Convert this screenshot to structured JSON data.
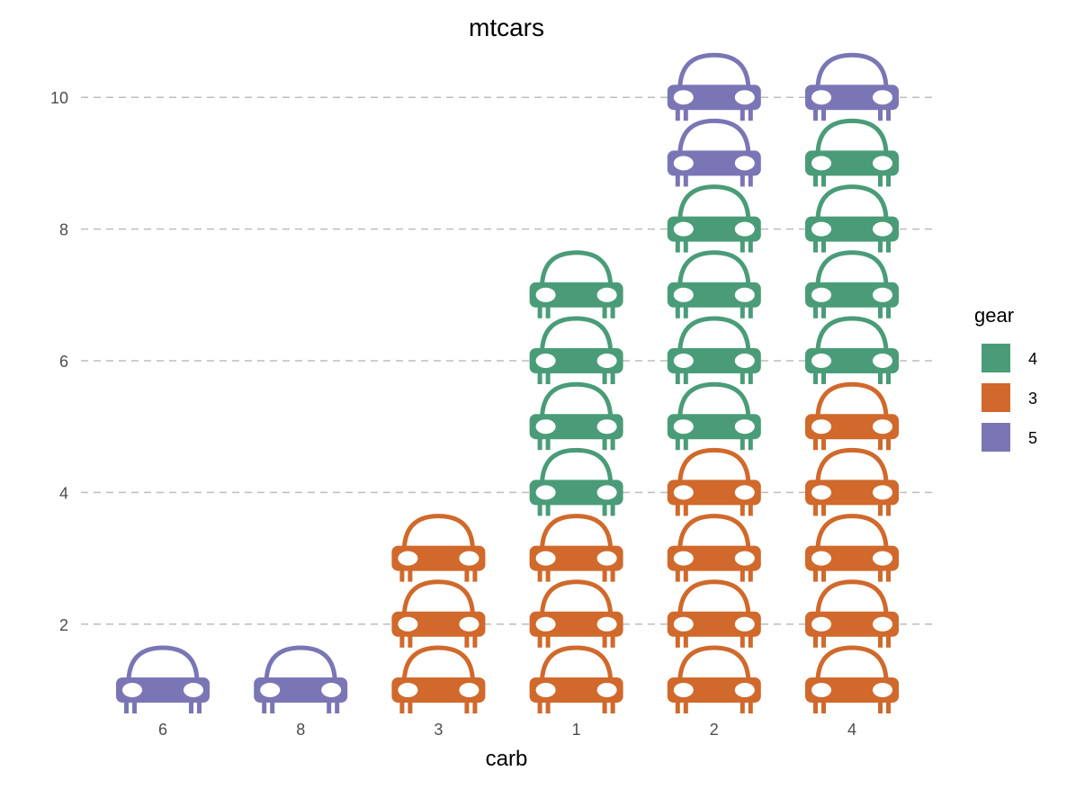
{
  "chart_data": {
    "type": "pictogram",
    "title": "mtcars",
    "xlabel": "carb",
    "ylabel": "",
    "categories": [
      "6",
      "8",
      "3",
      "1",
      "2",
      "4"
    ],
    "y_ticks": [
      "2",
      "4",
      "6",
      "8",
      "10"
    ],
    "ylim": [
      0.6,
      10.6
    ],
    "grid": "horizontal dashed",
    "icon": "car-icon",
    "legend": {
      "title": "gear",
      "position": "right",
      "entries": [
        {
          "label": "4",
          "color": "#4a9c78"
        },
        {
          "label": "3",
          "color": "#d0692b"
        },
        {
          "label": "5",
          "color": "#7a76b5"
        }
      ]
    },
    "columns": [
      {
        "category": "6",
        "stack": [
          "5"
        ]
      },
      {
        "category": "8",
        "stack": [
          "5"
        ]
      },
      {
        "category": "3",
        "stack": [
          "3",
          "3",
          "3"
        ]
      },
      {
        "category": "1",
        "stack": [
          "3",
          "3",
          "3",
          "4",
          "4",
          "4",
          "4"
        ]
      },
      {
        "category": "2",
        "stack": [
          "3",
          "3",
          "3",
          "3",
          "4",
          "4",
          "4",
          "4",
          "5",
          "5"
        ]
      },
      {
        "category": "4",
        "stack": [
          "3",
          "3",
          "3",
          "3",
          "3",
          "4",
          "4",
          "4",
          "4",
          "5"
        ]
      }
    ]
  }
}
